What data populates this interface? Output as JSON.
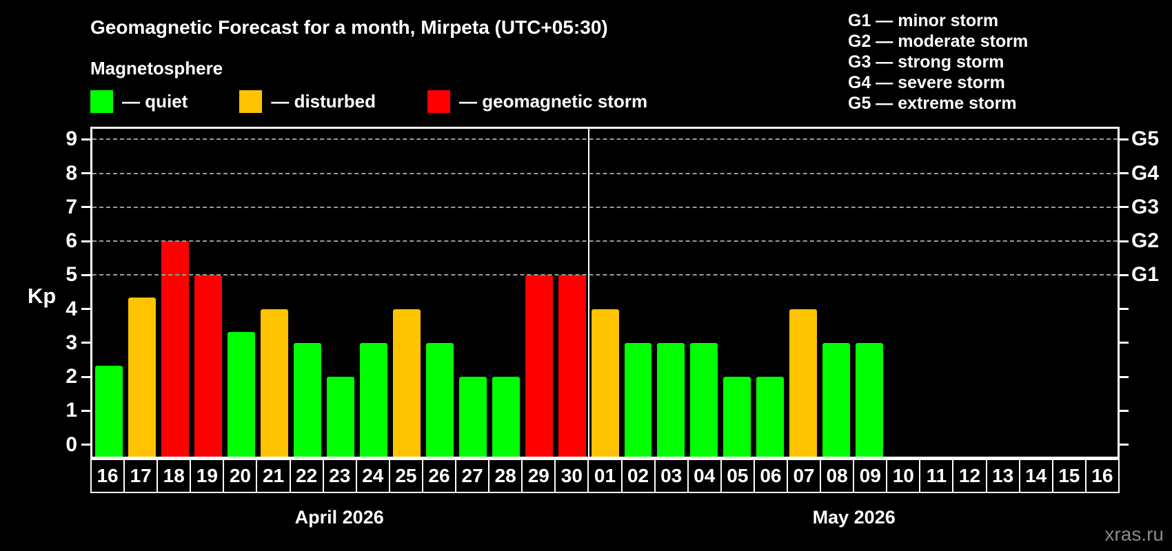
{
  "header": {
    "title": "Geomagnetic Forecast for a month, Mirpeta (UTC+05:30)"
  },
  "magnetosphere_legend": {
    "heading": "Magnetosphere",
    "items": [
      {
        "name": "quiet",
        "label": "— quiet",
        "color": "#00ff00"
      },
      {
        "name": "disturbed",
        "label": "— disturbed",
        "color": "#ffc300"
      },
      {
        "name": "storm",
        "label": "— geomagnetic storm",
        "color": "#ff0000"
      }
    ]
  },
  "g_scale_legend": {
    "lines": [
      "G1 — minor storm",
      "G2 — moderate storm",
      "G3 — strong storm",
      "G4 — severe storm",
      "G5 — extreme storm"
    ]
  },
  "watermark": "xras.ru",
  "chart_data": {
    "type": "bar",
    "title": "Geomagnetic Forecast for a month, Mirpeta (UTC+05:30)",
    "xlabel": "",
    "ylabel": "Kp",
    "ylim": [
      -0.35,
      9.31
    ],
    "grid": "dashed horizontal lines at Kp 5-9 only",
    "grid_kp_levels": [
      5,
      6,
      7,
      8,
      9
    ],
    "left_ticks": [
      0,
      1,
      2,
      3,
      4,
      5,
      6,
      7,
      8,
      9
    ],
    "right_axis_labels": [
      {
        "text": "G1",
        "kp": 5
      },
      {
        "text": "G2",
        "kp": 6
      },
      {
        "text": "G3",
        "kp": 7
      },
      {
        "text": "G4",
        "kp": 8
      },
      {
        "text": "G5",
        "kp": 9
      }
    ],
    "colors": {
      "quiet": "#00ff00",
      "disturbed": "#ffc300",
      "storm": "#ff0000",
      "grid": "#9c9c9c",
      "axis": "#ffffff",
      "background": "#000000"
    },
    "thresholds": {
      "disturbed_min": 4,
      "storm_min": 5
    },
    "months": [
      {
        "label": "April 2026",
        "days": [
          "16",
          "17",
          "18",
          "19",
          "20",
          "21",
          "22",
          "23",
          "24",
          "25",
          "26",
          "27",
          "28",
          "29",
          "30"
        ],
        "values": [
          2.33,
          4.33,
          6,
          5,
          3.33,
          4,
          3,
          2,
          3,
          4,
          3,
          2,
          2,
          5,
          5
        ]
      },
      {
        "label": "May 2026",
        "days": [
          "01",
          "02",
          "03",
          "04",
          "05",
          "06",
          "07",
          "08",
          "09",
          "10",
          "11",
          "12",
          "13",
          "14",
          "15",
          "16"
        ],
        "values": [
          4,
          3,
          3,
          3,
          2,
          2,
          4,
          3,
          3,
          null,
          null,
          null,
          null,
          null,
          null,
          null
        ]
      }
    ]
  }
}
